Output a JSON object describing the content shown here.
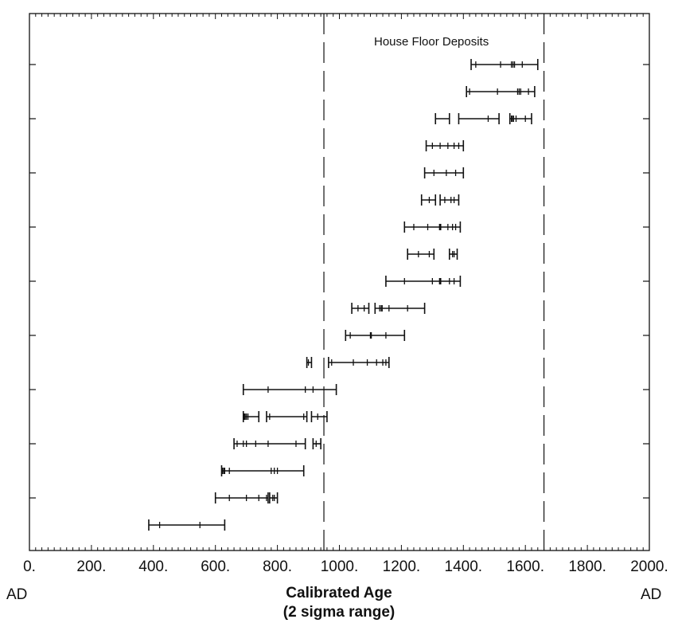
{
  "chart_data": {
    "type": "range",
    "xlabel": "Calibrated Age",
    "xlabel_sub": "(2 sigma range)",
    "x_end_labels": {
      "left": "AD",
      "right": "AD"
    },
    "annotation": "House Floor Deposits",
    "xlim": [
      0,
      2000
    ],
    "x_ticks": [
      {
        "value": 0,
        "label": "0."
      },
      {
        "value": 200,
        "label": "200."
      },
      {
        "value": 400,
        "label": "400."
      },
      {
        "value": 600,
        "label": "600."
      },
      {
        "value": 800,
        "label": "800."
      },
      {
        "value": 1000,
        "label": "1000."
      },
      {
        "value": 1200,
        "label": "1200."
      },
      {
        "value": 1400,
        "label": "1400."
      },
      {
        "value": 1600,
        "label": "1600."
      },
      {
        "value": 1800,
        "label": "1800."
      },
      {
        "value": 2000,
        "label": "2000."
      }
    ],
    "reference_lines": [
      950,
      1660
    ],
    "series": [
      {
        "segments": [
          [
            1425,
            1640
          ]
        ],
        "marks": [
          1440,
          1520,
          1555,
          1560,
          1565,
          1590
        ]
      },
      {
        "segments": [
          [
            1410,
            1630
          ]
        ],
        "marks": [
          1420,
          1510,
          1575,
          1580,
          1585,
          1610
        ]
      },
      {
        "segments": [
          [
            1310,
            1355
          ],
          [
            1385,
            1515
          ],
          [
            1550,
            1620
          ]
        ],
        "marks": [
          1480,
          1555,
          1558,
          1562,
          1570,
          1600
        ]
      },
      {
        "segments": [
          [
            1280,
            1400
          ]
        ],
        "marks": [
          1300,
          1325,
          1350,
          1370,
          1385
        ]
      },
      {
        "segments": [
          [
            1275,
            1400
          ]
        ],
        "marks": [
          1305,
          1345,
          1375
        ]
      },
      {
        "segments": [
          [
            1265,
            1310
          ],
          [
            1325,
            1385
          ]
        ],
        "marks": [
          1290,
          1340,
          1360,
          1370
        ]
      },
      {
        "segments": [
          [
            1210,
            1390
          ]
        ],
        "marks": [
          1240,
          1285,
          1323,
          1325,
          1327,
          1350,
          1365,
          1375
        ]
      },
      {
        "segments": [
          [
            1220,
            1305
          ],
          [
            1355,
            1380
          ]
        ],
        "marks": [
          1255,
          1290,
          1365,
          1370
        ]
      },
      {
        "segments": [
          [
            1150,
            1390
          ]
        ],
        "marks": [
          1210,
          1300,
          1323,
          1325,
          1327,
          1355,
          1370
        ]
      },
      {
        "segments": [
          [
            1040,
            1095
          ],
          [
            1115,
            1275
          ]
        ],
        "marks": [
          1060,
          1080,
          1130,
          1135,
          1138,
          1160,
          1220
        ]
      },
      {
        "segments": [
          [
            1020,
            1210
          ]
        ],
        "marks": [
          1035,
          1100,
          1103,
          1150
        ]
      },
      {
        "segments": [
          [
            895,
            910
          ],
          [
            965,
            1160
          ]
        ],
        "marks": [
          900,
          975,
          1045,
          1090,
          1120,
          1140,
          1150
        ]
      },
      {
        "segments": [
          [
            690,
            990
          ]
        ],
        "marks": [
          770,
          890,
          915
        ]
      },
      {
        "segments": [
          [
            690,
            740
          ],
          [
            765,
            895
          ],
          [
            910,
            960
          ]
        ],
        "marks": [
          693,
          696,
          700,
          705,
          775,
          885,
          930
        ]
      },
      {
        "segments": [
          [
            660,
            890
          ],
          [
            915,
            940
          ]
        ],
        "marks": [
          670,
          690,
          700,
          730,
          770,
          860,
          925
        ]
      },
      {
        "segments": [
          [
            620,
            885
          ]
        ],
        "marks": [
          623,
          627,
          630,
          645,
          780,
          790,
          800
        ]
      },
      {
        "segments": [
          [
            600,
            770
          ],
          [
            775,
            800
          ]
        ],
        "marks": [
          645,
          700,
          740,
          765,
          785,
          790
        ]
      },
      {
        "segments": [
          [
            385,
            630
          ]
        ],
        "marks": [
          420,
          550
        ]
      }
    ]
  }
}
